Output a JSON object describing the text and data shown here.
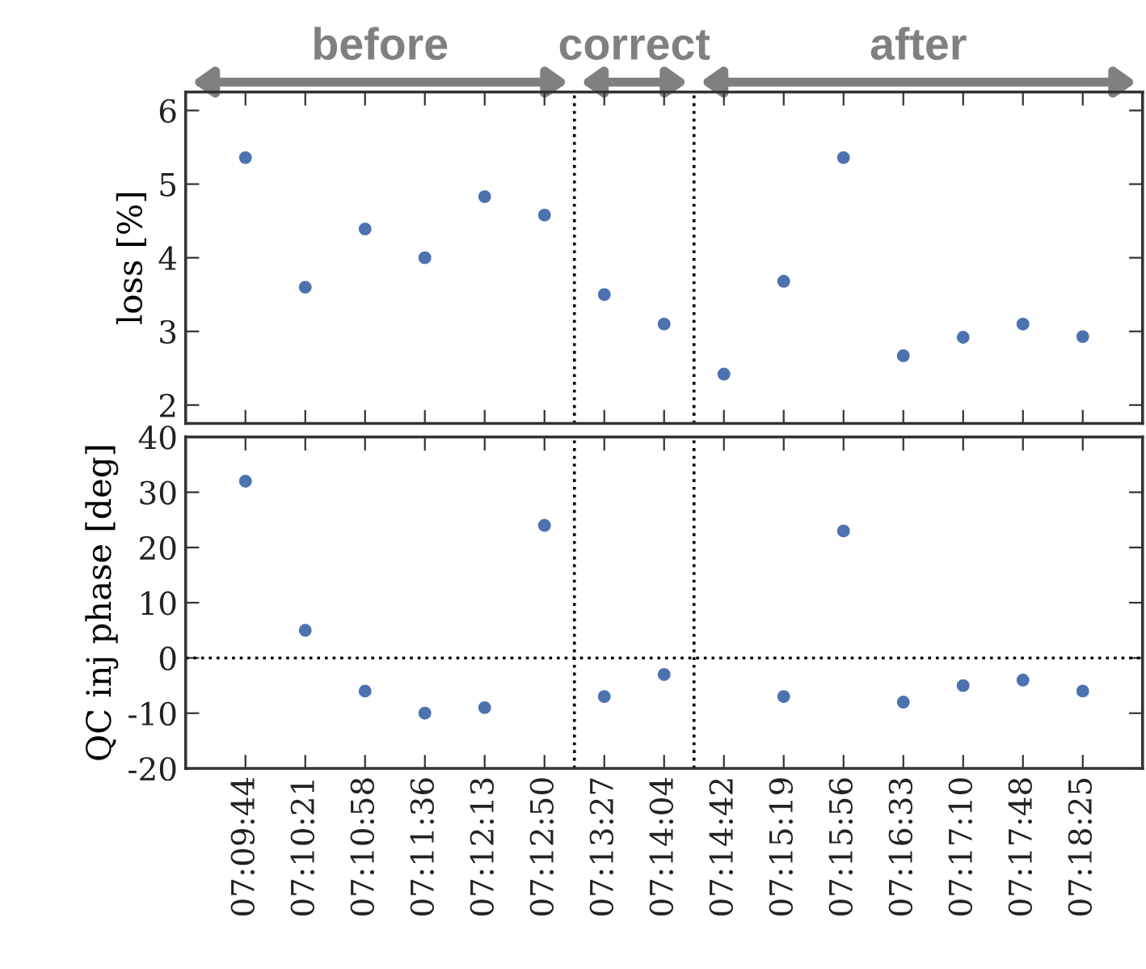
{
  "chart_data": [
    {
      "type": "scatter",
      "ylabel": "loss [%]",
      "categories": [
        null,
        null,
        null,
        null,
        null,
        null,
        null,
        null,
        null,
        null,
        null,
        null,
        null,
        null,
        null
      ],
      "series": [
        {
          "color": "#4c72b0",
          "values": [
            5.36,
            3.6,
            4.39,
            4.0,
            4.83,
            4.58,
            3.5,
            3.1,
            2.42,
            3.68,
            5.36,
            2.67,
            2.92,
            3.1,
            2.93
          ]
        }
      ],
      "ylim": [
        1.75,
        6.25
      ],
      "yticks": [
        2,
        3,
        4,
        5,
        6
      ],
      "marker": "circle",
      "grid": false,
      "tick_labels": "y",
      "annotations": [
        "before",
        "correct",
        "after"
      ]
    },
    {
      "type": "scatter",
      "ylabel": "QC inj phase [deg]",
      "categories": [
        "07:09:44",
        "07:10:21",
        "07:10:58",
        "07:11:36",
        "07:12:13",
        "07:12:50",
        "07:13:27",
        "07:14:04",
        "07:14:42",
        "07:15:19",
        "07:15:56",
        "07:16:33",
        "07:17:10",
        "07:17:48",
        "07:18:25"
      ],
      "series": [
        {
          "color": "#4c72b0",
          "values": [
            32,
            5,
            -6,
            -10,
            -9,
            24,
            -7,
            -3,
            null,
            -7,
            23,
            -8,
            -5,
            -4,
            -6
          ]
        }
      ],
      "ylim": [
        -20,
        40
      ],
      "yticks": [
        -20,
        -10,
        0,
        10,
        20,
        30,
        40
      ],
      "marker": "circle",
      "grid": false,
      "ref_lines": [
        {
          "axis": "y",
          "value": 0,
          "line_style": "dotted",
          "color": "#000000"
        }
      ]
    }
  ]
}
